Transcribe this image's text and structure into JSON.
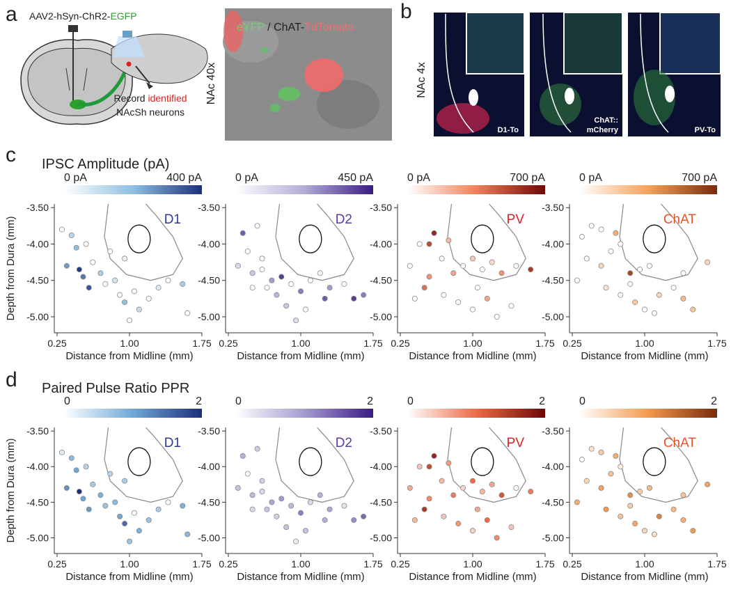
{
  "figure": {
    "panel_labels": [
      "a",
      "b",
      "c",
      "d"
    ],
    "virus_prefix": "AAV2-hSyn-ChR2-",
    "virus_tag": "EGFP",
    "record_1": "Record ",
    "record_2": "identified",
    "record_3": "NAcSh neurons",
    "image_a_label": "NAc 40x",
    "image_a_legend_1": "eYFP",
    "image_a_legend_2": " / ChAT-",
    "image_a_legend_3": "TdTomato",
    "image_b_label": "NAc 4x",
    "image_b_tags": [
      "D1-To",
      "ChAT::",
      "mCherry",
      "PV-To"
    ],
    "row_c_title": "IPSC Amplitude (pA)",
    "row_d_title": "Paired Pulse Ratio PPR"
  },
  "chart_data": [
    {
      "type": "scatter",
      "title": "D1",
      "title_color": "#2b3a8f",
      "xlabel": "Distance from Midline (mm)",
      "ylabel": "Depth from Dura (mm)",
      "xlim": [
        0.25,
        1.75
      ],
      "xticks": [
        0.25,
        {
          "value": 1,
          "label": "1.00"
        },
        1.75
      ],
      "ylim": [
        -5.22,
        -3.45
      ],
      "yticks": [
        {
          "value": -3.5,
          "label": "-3.50"
        },
        {
          "value": -4,
          "label": "-4.00"
        },
        {
          "value": -4.5,
          "label": "-4.50"
        },
        {
          "value": -5,
          "label": "-5.00"
        }
      ],
      "colorscale": {
        "colors": [
          "#ffffff",
          "#8fbfe0",
          "#1c2f7a"
        ],
        "lim": [
          0,
          400
        ],
        "ticks": [
          {
            "value": 0,
            "label": "0 pA"
          },
          {
            "value": 400,
            "label": "400 pA"
          }
        ]
      },
      "x": [
        0.3,
        0.4,
        0.45,
        0.55,
        0.35,
        0.48,
        0.52,
        0.62,
        0.7,
        0.58,
        0.75,
        0.85,
        0.9,
        0.95,
        1.05,
        1.1,
        1.2,
        1.3,
        1.4,
        1.55,
        1.6,
        0.8,
        0.95,
        1.0
      ],
      "y": [
        -3.8,
        -3.88,
        -4.05,
        -4.0,
        -4.3,
        -4.35,
        -4.45,
        -4.25,
        -4.4,
        -4.6,
        -4.55,
        -4.5,
        -4.7,
        -4.8,
        -4.65,
        -4.9,
        -4.75,
        -4.6,
        -4.5,
        -4.55,
        -4.95,
        -4.1,
        -4.2,
        -5.05
      ],
      "values": [
        0,
        120,
        200,
        0,
        250,
        380,
        300,
        0,
        150,
        350,
        0,
        80,
        0,
        200,
        0,
        100,
        0,
        60,
        0,
        150,
        0,
        0,
        40,
        0
      ]
    },
    {
      "type": "scatter",
      "title": "D2",
      "title_color": "#5b3a9e",
      "xlabel": "Distance from Midline (mm)",
      "xlim": [
        0.25,
        1.75
      ],
      "xticks": [
        0.25,
        {
          "value": 1,
          "label": "1.00"
        },
        1.75
      ],
      "ylim": [
        -5.22,
        -3.45
      ],
      "yticks": [
        {
          "value": -3.5,
          "label": "-3.50"
        },
        {
          "value": -4,
          "label": "-4.00"
        },
        {
          "value": -4.5,
          "label": "-4.50"
        },
        {
          "value": -5,
          "label": "-5.00"
        }
      ],
      "colorscale": {
        "colors": [
          "#ffffff",
          "#b3acd6",
          "#3a1c85"
        ],
        "lim": [
          0,
          450
        ],
        "ticks": [
          {
            "value": 0,
            "label": "0 pA"
          },
          {
            "value": 450,
            "label": "450 pA"
          }
        ]
      },
      "x": [
        0.4,
        0.55,
        0.45,
        0.35,
        0.5,
        0.6,
        0.7,
        0.8,
        0.65,
        0.75,
        0.9,
        1.0,
        1.1,
        1.2,
        1.3,
        1.45,
        1.55,
        1.65,
        0.85,
        0.95,
        0.6,
        1.25,
        0.5,
        1.05
      ],
      "y": [
        -3.85,
        -3.75,
        -4.1,
        -4.3,
        -4.4,
        -4.35,
        -4.5,
        -4.45,
        -4.6,
        -4.7,
        -4.55,
        -4.65,
        -4.5,
        -4.4,
        -4.6,
        -4.55,
        -4.75,
        -4.7,
        -4.85,
        -5.05,
        -4.2,
        -4.75,
        -4.6,
        -4.9
      ],
      "values": [
        350,
        0,
        0,
        100,
        150,
        0,
        250,
        400,
        0,
        200,
        0,
        300,
        0,
        0,
        250,
        0,
        400,
        300,
        150,
        100,
        0,
        350,
        0,
        0
      ]
    },
    {
      "type": "scatter",
      "title": "PV",
      "title_color": "#e02020",
      "xlabel": "Distance from Midline (mm)",
      "xlim": [
        0.25,
        1.75
      ],
      "xticks": [
        0.25,
        {
          "value": 1,
          "label": "1.00"
        },
        1.75
      ],
      "ylim": [
        -5.22,
        -3.45
      ],
      "yticks": [
        {
          "value": -3.5,
          "label": "-3.50"
        },
        {
          "value": -4,
          "label": "-4.00"
        },
        {
          "value": -4.5,
          "label": "-4.50"
        },
        {
          "value": -5,
          "label": "-5.00"
        }
      ],
      "colorscale": {
        "colors": [
          "#ffffff",
          "#f0805a",
          "#6e0707"
        ],
        "lim": [
          0,
          700
        ],
        "ticks": [
          {
            "value": 0,
            "label": "0 pA"
          },
          {
            "value": 700,
            "label": "700 pA"
          }
        ]
      },
      "x": [
        0.35,
        0.45,
        0.55,
        0.6,
        0.75,
        0.68,
        0.8,
        0.9,
        1.0,
        1.1,
        1.2,
        1.3,
        1.45,
        1.6,
        0.5,
        0.7,
        0.85,
        1.0,
        1.15,
        1.25,
        1.4,
        0.55,
        1.05,
        0.4
      ],
      "y": [
        -4.3,
        -4.0,
        -4.45,
        -3.85,
        -3.95,
        -4.2,
        -4.4,
        -4.3,
        -4.2,
        -4.35,
        -4.25,
        -4.4,
        -4.3,
        -4.35,
        -4.6,
        -4.7,
        -4.8,
        -4.9,
        -4.75,
        -5.0,
        -4.85,
        -4.0,
        -4.6,
        -4.75
      ],
      "values": [
        0,
        0,
        300,
        600,
        200,
        0,
        250,
        0,
        150,
        0,
        100,
        300,
        0,
        550,
        400,
        0,
        0,
        0,
        250,
        0,
        0,
        500,
        0,
        0
      ]
    },
    {
      "type": "scatter",
      "title": "ChAT",
      "title_color": "#e8532a",
      "xlabel": "Distance from Midline (mm)",
      "xlim": [
        0.25,
        1.75
      ],
      "xticks": [
        0.25,
        {
          "value": 1,
          "label": "1.00"
        },
        1.75
      ],
      "ylim": [
        -5.22,
        -3.45
      ],
      "yticks": [
        {
          "value": -3.5,
          "label": "-3.50"
        },
        {
          "value": -4,
          "label": "-4.00"
        },
        {
          "value": -4.5,
          "label": "-4.50"
        },
        {
          "value": -5,
          "label": "-5.00"
        }
      ],
      "colorscale": {
        "colors": [
          "#ffffff",
          "#f5a25a",
          "#7a2a0c"
        ],
        "lim": [
          0,
          700
        ],
        "ticks": [
          {
            "value": 0,
            "label": "0 pA"
          },
          {
            "value": 700,
            "label": "700 pA"
          }
        ]
      },
      "x": [
        0.35,
        0.45,
        0.55,
        0.7,
        0.4,
        0.55,
        0.65,
        0.75,
        0.85,
        0.95,
        1.05,
        0.3,
        0.6,
        0.75,
        0.9,
        1.0,
        1.15,
        1.3,
        1.4,
        1.5,
        1.65,
        1.4,
        0.85,
        1.1
      ],
      "y": [
        -3.9,
        -3.75,
        -3.8,
        -3.85,
        -4.2,
        -4.3,
        -4.1,
        -4.0,
        -4.4,
        -4.35,
        -4.3,
        -4.5,
        -4.6,
        -4.7,
        -4.8,
        -4.9,
        -4.7,
        -4.6,
        -4.75,
        -4.9,
        -4.25,
        -4.4,
        -4.55,
        -4.95
      ],
      "values": [
        0,
        0,
        0,
        300,
        0,
        150,
        0,
        0,
        600,
        0,
        0,
        0,
        100,
        0,
        200,
        0,
        150,
        0,
        250,
        200,
        150,
        0,
        0,
        0
      ]
    },
    {
      "type": "scatter",
      "title": "D1",
      "title_color": "#2b3a8f",
      "xlabel": "Distance from Midline (mm)",
      "ylabel": "Depth from Dura (mm)",
      "xlim": [
        0.25,
        1.75
      ],
      "xticks": [
        0.25,
        {
          "value": 1,
          "label": "1.00"
        },
        1.75
      ],
      "ylim": [
        -5.22,
        -3.45
      ],
      "yticks": [
        {
          "value": -3.5,
          "label": "-3.50"
        },
        {
          "value": -4,
          "label": "-4.00"
        },
        {
          "value": -4.5,
          "label": "-4.50"
        },
        {
          "value": -5,
          "label": "-5.00"
        }
      ],
      "colorscale": {
        "colors": [
          "#ffffff",
          "#6fa8d6",
          "#1c2f7a"
        ],
        "lim": [
          0,
          2
        ],
        "ticks": [
          0,
          2
        ]
      },
      "x": [
        0.3,
        0.4,
        0.45,
        0.55,
        0.35,
        0.48,
        0.52,
        0.62,
        0.7,
        0.58,
        0.75,
        0.85,
        0.9,
        0.95,
        1.05,
        1.1,
        1.2,
        1.3,
        1.4,
        1.55,
        1.6,
        0.8,
        0.95,
        1.0
      ],
      "y": [
        -3.8,
        -3.88,
        -4.05,
        -4.0,
        -4.3,
        -4.35,
        -4.45,
        -4.25,
        -4.4,
        -4.6,
        -4.55,
        -4.5,
        -4.7,
        -4.8,
        -4.65,
        -4.9,
        -4.75,
        -4.6,
        -4.5,
        -4.55,
        -4.95,
        -4.1,
        -4.2,
        -5.05
      ],
      "values": [
        0.2,
        0.8,
        1.0,
        0.5,
        1.2,
        2.0,
        1.0,
        0.6,
        0.9,
        1.1,
        0.7,
        0.8,
        1.0,
        1.5,
        0,
        0.9,
        0.7,
        0.6,
        0,
        0.9,
        0.8,
        0.5,
        0.6,
        0.7
      ]
    },
    {
      "type": "scatter",
      "title": "D2",
      "title_color": "#5b3a9e",
      "xlabel": "Distance from Midline (mm)",
      "xlim": [
        0.25,
        1.75
      ],
      "xticks": [
        0.25,
        {
          "value": 1,
          "label": "1.00"
        },
        1.75
      ],
      "ylim": [
        -5.22,
        -3.45
      ],
      "yticks": [
        {
          "value": -3.5,
          "label": "-3.50"
        },
        {
          "value": -4,
          "label": "-4.00"
        },
        {
          "value": -4.5,
          "label": "-4.50"
        },
        {
          "value": -5,
          "label": "-5.00"
        }
      ],
      "colorscale": {
        "colors": [
          "#ffffff",
          "#a49bd0",
          "#3a1c85"
        ],
        "lim": [
          0,
          2
        ],
        "ticks": [
          0,
          2
        ]
      },
      "x": [
        0.4,
        0.55,
        0.45,
        0.35,
        0.5,
        0.6,
        0.7,
        0.8,
        0.65,
        0.75,
        0.9,
        1.0,
        1.1,
        1.2,
        1.3,
        1.45,
        1.55,
        1.65,
        0.85,
        0.95,
        0.6,
        1.25,
        0.5,
        1.05
      ],
      "y": [
        -3.85,
        -3.75,
        -4.1,
        -4.3,
        -4.4,
        -4.35,
        -4.5,
        -4.45,
        -4.6,
        -4.7,
        -4.55,
        -4.65,
        -4.5,
        -4.4,
        -4.6,
        -4.55,
        -4.75,
        -4.7,
        -4.85,
        -5.05,
        -4.2,
        -4.75,
        -4.6,
        -4.9
      ],
      "values": [
        0.8,
        0.5,
        0,
        0.6,
        0.7,
        0.4,
        0.9,
        1.0,
        0.6,
        0.5,
        0.7,
        1.2,
        0.4,
        0.8,
        0.9,
        0.3,
        1.1,
        1.4,
        0.6,
        0.2,
        0.5,
        0.8,
        0.4,
        0.6
      ]
    },
    {
      "type": "scatter",
      "title": "PV",
      "title_color": "#e02020",
      "xlabel": "Distance from Midline (mm)",
      "xlim": [
        0.25,
        1.75
      ],
      "xticks": [
        0.25,
        {
          "value": 1,
          "label": "1.00"
        },
        1.75
      ],
      "ylim": [
        -5.22,
        -3.45
      ],
      "yticks": [
        {
          "value": -3.5,
          "label": "-3.50"
        },
        {
          "value": -4,
          "label": "-4.00"
        },
        {
          "value": -4.5,
          "label": "-4.50"
        },
        {
          "value": -5,
          "label": "-5.00"
        }
      ],
      "colorscale": {
        "colors": [
          "#ffffff",
          "#ee6a45",
          "#6e0707"
        ],
        "lim": [
          0,
          2
        ],
        "ticks": [
          0,
          2
        ]
      },
      "x": [
        0.35,
        0.45,
        0.55,
        0.6,
        0.75,
        0.68,
        0.8,
        0.9,
        1.0,
        1.1,
        1.2,
        1.3,
        1.45,
        1.6,
        0.5,
        0.7,
        0.85,
        1.0,
        1.15,
        1.25,
        1.4,
        0.55,
        1.05,
        0.4
      ],
      "y": [
        -4.3,
        -4.0,
        -4.45,
        -3.85,
        -3.95,
        -4.2,
        -4.4,
        -4.3,
        -4.2,
        -4.35,
        -4.25,
        -4.4,
        -4.3,
        -4.35,
        -4.6,
        -4.7,
        -4.8,
        -4.9,
        -4.75,
        -5.0,
        -4.85,
        -4.0,
        -4.6,
        -4.75
      ],
      "values": [
        0.6,
        0.4,
        0.8,
        1.7,
        0.7,
        0.5,
        0.9,
        0.3,
        1.0,
        0.5,
        0.6,
        1.2,
        0,
        0.9,
        1.5,
        0.4,
        0.7,
        0.3,
        1.0,
        0.8,
        0.4,
        1.3,
        0.6,
        0.5
      ]
    },
    {
      "type": "scatter",
      "title": "ChAT",
      "title_color": "#e8532a",
      "xlabel": "Distance from Midline (mm)",
      "xlim": [
        0.25,
        1.75
      ],
      "xticks": [
        0.25,
        {
          "value": 1,
          "label": "1.00"
        },
        1.75
      ],
      "ylim": [
        -5.22,
        -3.45
      ],
      "yticks": [
        {
          "value": -3.5,
          "label": "-3.50"
        },
        {
          "value": -4,
          "label": "-4.00"
        },
        {
          "value": -4.5,
          "label": "-4.50"
        },
        {
          "value": -5,
          "label": "-5.00"
        }
      ],
      "colorscale": {
        "colors": [
          "#ffffff",
          "#f39a4e",
          "#7a2a0c"
        ],
        "lim": [
          0,
          2
        ],
        "ticks": [
          0,
          2
        ]
      },
      "x": [
        0.35,
        0.45,
        0.55,
        0.7,
        0.4,
        0.55,
        0.65,
        0.75,
        0.85,
        0.95,
        1.05,
        0.3,
        0.6,
        0.75,
        0.9,
        1.0,
        1.15,
        1.3,
        1.4,
        1.5,
        1.65,
        1.4,
        0.85,
        1.1
      ],
      "y": [
        -3.9,
        -3.75,
        -3.8,
        -3.85,
        -4.2,
        -4.3,
        -4.1,
        -4.0,
        -4.4,
        -4.35,
        -4.3,
        -4.5,
        -4.6,
        -4.7,
        -4.8,
        -4.9,
        -4.7,
        -4.6,
        -4.75,
        -4.9,
        -4.25,
        -4.4,
        -4.55,
        -4.95
      ],
      "values": [
        0,
        0.3,
        0.5,
        0.8,
        0.4,
        0.9,
        0.6,
        0.2,
        1.1,
        0.5,
        0.7,
        0.8,
        1.0,
        0.6,
        0.9,
        0.4,
        1.2,
        0.7,
        0.8,
        1.0,
        0.9,
        0.6,
        0.5,
        0.3
      ]
    }
  ]
}
